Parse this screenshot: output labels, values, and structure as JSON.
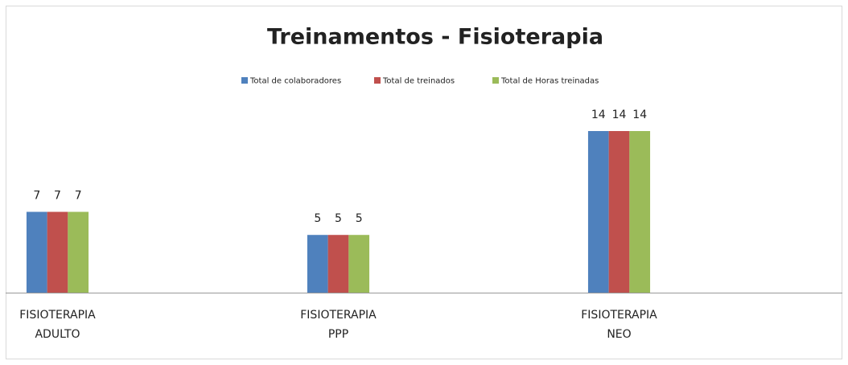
{
  "chart_data": {
    "type": "bar",
    "title": "Treinamentos - Fisioterapia",
    "categories": [
      "FISIOTERAPIA ADULTO",
      "FISIOTERAPIA PPP",
      "FISIOTERAPIA NEO"
    ],
    "series": [
      {
        "name": "Total de colaboradores",
        "color": "#4f81bd",
        "values": [
          7,
          5,
          14
        ]
      },
      {
        "name": "Total de treinados",
        "color": "#c0504d",
        "values": [
          7,
          5,
          14
        ]
      },
      {
        "name": "Total de Horas treinadas",
        "color": "#9bbb59",
        "values": [
          7,
          5,
          14
        ]
      }
    ],
    "legend": "top",
    "data_labels": true
  }
}
